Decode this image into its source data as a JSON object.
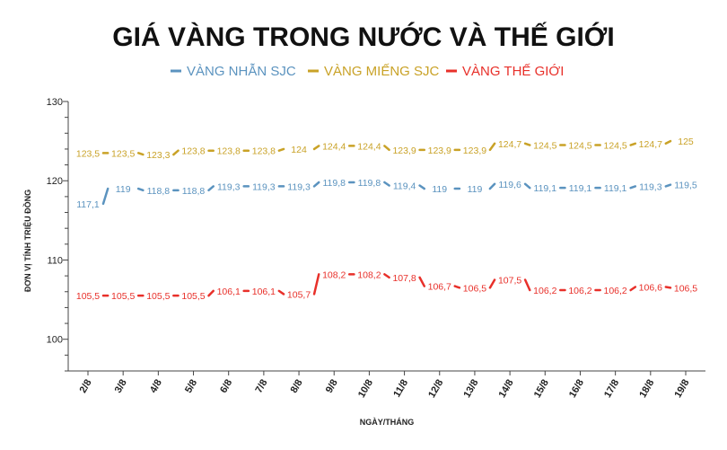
{
  "chart_data": {
    "type": "line",
    "title": "GIÁ VÀNG TRONG NƯỚC VÀ THẾ GIỚI",
    "xlabel": "NGÀY/THÁNG",
    "ylabel": "ĐƠN VỊ TÍNH TRIỆU ĐỒNG",
    "ylim": [
      96,
      130
    ],
    "yticks": [
      100,
      110,
      120,
      130
    ],
    "grid": false,
    "legend": "top",
    "categories": [
      "2/8",
      "3/8",
      "4/8",
      "5/8",
      "6/8",
      "7/8",
      "8/8",
      "9/8",
      "10/8",
      "11/8",
      "12/8",
      "13/8",
      "14/8",
      "15/8",
      "16/8",
      "17/8",
      "18/8",
      "19/8"
    ],
    "series": [
      {
        "name": "VÀNG NHẪN SJC",
        "color": "#5b93bf",
        "values": [
          117.1,
          119,
          118.8,
          118.8,
          119.3,
          119.3,
          119.3,
          119.8,
          119.8,
          119.4,
          119,
          119,
          119.6,
          119.1,
          119.1,
          119.1,
          119.3,
          119.5
        ],
        "labels": [
          "117,1",
          "119",
          "118,8",
          "118,8",
          "119,3",
          "119,3",
          "119,3",
          "119,8",
          "119,8",
          "119,4",
          "119",
          "119",
          "119,6",
          "119,1",
          "119,1",
          "119,1",
          "119,3",
          "119,5"
        ]
      },
      {
        "name": "VÀNG MIẾNG SJC",
        "color": "#c9a227",
        "values": [
          123.5,
          123.5,
          123.3,
          123.8,
          123.8,
          123.8,
          124,
          124.4,
          124.4,
          123.9,
          123.9,
          123.9,
          124.7,
          124.5,
          124.5,
          124.5,
          124.7,
          125
        ],
        "labels": [
          "123,5",
          "123,5",
          "123,3",
          "123,8",
          "123,8",
          "123,8",
          "124",
          "124,4",
          "124,4",
          "123,9",
          "123,9",
          "123,9",
          "124,7",
          "124,5",
          "124,5",
          "124,5",
          "124,7",
          "125"
        ]
      },
      {
        "name": "VÀNG THẾ GIỚI",
        "color": "#e8302a",
        "values": [
          105.5,
          105.5,
          105.5,
          105.5,
          106.1,
          106.1,
          105.7,
          108.2,
          108.2,
          107.8,
          106.7,
          106.5,
          107.5,
          106.2,
          106.2,
          106.2,
          106.6,
          106.5
        ],
        "labels": [
          "105,5",
          "105,5",
          "105,5",
          "105,5",
          "106,1",
          "106,1",
          "105,7",
          "108,2",
          "108,2",
          "107,8",
          "106,7",
          "106,5",
          "107,5",
          "106,2",
          "106,2",
          "106,2",
          "106,6",
          "106,5"
        ]
      }
    ]
  }
}
